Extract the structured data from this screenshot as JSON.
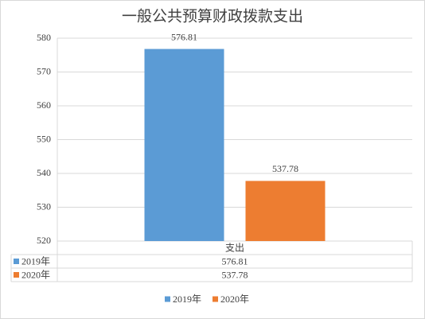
{
  "chart_data": {
    "type": "bar",
    "title": "一般公共预算财政拨款支出",
    "categories": [
      "支出"
    ],
    "series": [
      {
        "name": "2019年",
        "color": "#5b9bd5",
        "values": [
          576.81
        ]
      },
      {
        "name": "2020年",
        "color": "#ed7d31",
        "values": [
          537.78
        ]
      }
    ],
    "ylim": [
      520,
      580
    ],
    "yticks": [
      520,
      530,
      540,
      550,
      560,
      570,
      580
    ],
    "grid": true,
    "legend": "bottom"
  }
}
